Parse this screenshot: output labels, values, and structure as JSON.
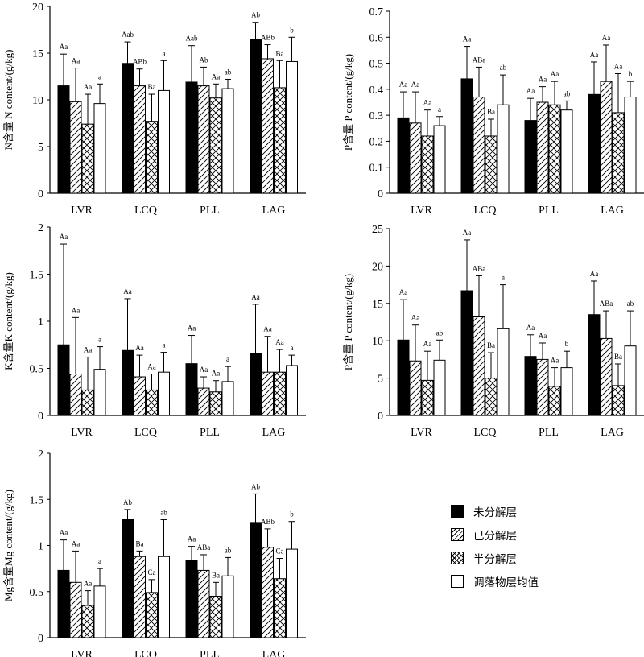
{
  "legend": [
    {
      "label": "未分解层",
      "pattern": "solid"
    },
    {
      "label": "已分解层",
      "pattern": "hatch"
    },
    {
      "label": "半分解层",
      "pattern": "cross"
    },
    {
      "label": "调落物层均值",
      "pattern": "white"
    }
  ],
  "colors": {
    "bar_fill": "#000000",
    "hatch_line": "#000000",
    "background": "#ffffff"
  },
  "chart_data": [
    {
      "type": "bar",
      "ylabel": "N含量 N content/(g/kg)",
      "ylim": [
        0,
        20
      ],
      "yticks": [
        0,
        5,
        10,
        15,
        20
      ],
      "categories": [
        "LVR",
        "LCQ",
        "PLL",
        "LAG"
      ],
      "series": [
        {
          "name": "未分解层",
          "values": [
            11.5,
            13.9,
            11.9,
            16.5
          ],
          "errors": [
            3.4,
            2.3,
            3.9,
            1.8
          ],
          "labels": [
            "Aa",
            "Aab",
            "Aab",
            "Ab"
          ]
        },
        {
          "name": "已分解层",
          "values": [
            9.8,
            11.5,
            11.5,
            14.4
          ],
          "errors": [
            3.6,
            1.8,
            2.0,
            1.5
          ],
          "labels": [
            "Aa",
            "ABb",
            "Ab",
            "ABb"
          ]
        },
        {
          "name": "半分解层",
          "values": [
            7.4,
            7.7,
            10.2,
            11.3
          ],
          "errors": [
            3.2,
            2.9,
            1.5,
            2.9
          ],
          "labels": [
            "Aa",
            "Ba",
            "Aa",
            "Ba"
          ]
        },
        {
          "name": "调落物层均值",
          "values": [
            9.6,
            11.0,
            11.2,
            14.1
          ],
          "errors": [
            2.1,
            3.2,
            1.0,
            2.6
          ],
          "labels": [
            "a",
            "a",
            "ab",
            "b"
          ]
        }
      ]
    },
    {
      "type": "bar",
      "ylabel": "P含量 P content/(g/kg)",
      "ylim": [
        0,
        0.7
      ],
      "yticks": [
        0,
        0.1,
        0.2,
        0.3,
        0.4,
        0.5,
        0.6,
        0.7
      ],
      "categories": [
        "LVR",
        "LCQ",
        "PLL",
        "LAG"
      ],
      "series": [
        {
          "name": "未分解层",
          "values": [
            0.29,
            0.44,
            0.28,
            0.38
          ],
          "errors": [
            0.1,
            0.125,
            0.085,
            0.125
          ],
          "labels": [
            "Aa",
            "Aa",
            "Aa",
            "Aa"
          ]
        },
        {
          "name": "已分解层",
          "values": [
            0.27,
            0.37,
            0.35,
            0.43
          ],
          "errors": [
            0.12,
            0.115,
            0.06,
            0.14
          ],
          "labels": [
            "Aa",
            "ABa",
            "Aa",
            "Aa"
          ]
        },
        {
          "name": "半分解层",
          "values": [
            0.22,
            0.22,
            0.34,
            0.31
          ],
          "errors": [
            0.1,
            0.065,
            0.09,
            0.15
          ],
          "labels": [
            "Aa",
            "Ba",
            "Aa",
            "Aa"
          ]
        },
        {
          "name": "调落物层均值",
          "values": [
            0.26,
            0.34,
            0.32,
            0.37
          ],
          "errors": [
            0.035,
            0.115,
            0.035,
            0.06
          ],
          "labels": [
            "a",
            "ab",
            "ab",
            "b"
          ]
        }
      ]
    },
    {
      "type": "bar",
      "ylabel": "K含量K content/(g/kg)",
      "ylim": [
        0,
        2.0
      ],
      "yticks": [
        0,
        0.5,
        1.0,
        1.5,
        2.0
      ],
      "categories": [
        "LVR",
        "LCQ",
        "PLL",
        "LAG"
      ],
      "series": [
        {
          "name": "未分解层",
          "values": [
            0.75,
            0.69,
            0.55,
            0.66
          ],
          "errors": [
            1.07,
            0.55,
            0.3,
            0.52
          ],
          "labels": [
            "Aa",
            "Aa",
            "Aa",
            "Aa"
          ]
        },
        {
          "name": "已分解层",
          "values": [
            0.44,
            0.41,
            0.29,
            0.46
          ],
          "errors": [
            0.6,
            0.23,
            0.12,
            0.38
          ],
          "labels": [
            "Aa",
            "Aa",
            "Aa",
            "Aa"
          ]
        },
        {
          "name": "半分解层",
          "values": [
            0.27,
            0.27,
            0.25,
            0.46
          ],
          "errors": [
            0.35,
            0.17,
            0.12,
            0.24
          ],
          "labels": [
            "Aa",
            "Aa",
            "Aa",
            "Aa"
          ]
        },
        {
          "name": "调落物层均值",
          "values": [
            0.49,
            0.46,
            0.36,
            0.53
          ],
          "errors": [
            0.24,
            0.21,
            0.16,
            0.11
          ],
          "labels": [
            "a",
            "a",
            "a",
            "a"
          ]
        }
      ]
    },
    {
      "type": "bar",
      "ylabel": "P含量 P content/(g/kg)",
      "ylim": [
        0,
        25
      ],
      "yticks": [
        0,
        5,
        10,
        15,
        20,
        25
      ],
      "categories": [
        "LVR",
        "LCQ",
        "PLL",
        "LAG"
      ],
      "series": [
        {
          "name": "未分解层",
          "values": [
            10.1,
            16.7,
            7.9,
            13.5
          ],
          "errors": [
            5.4,
            6.8,
            2.9,
            4.5
          ],
          "labels": [
            "Aa",
            "Aa",
            "Aa",
            "Aa"
          ]
        },
        {
          "name": "已分解层",
          "values": [
            7.3,
            13.2,
            7.5,
            10.3
          ],
          "errors": [
            4.8,
            5.5,
            2.2,
            3.7
          ],
          "labels": [
            "Aa",
            "ABa",
            "Aa",
            "ABa"
          ]
        },
        {
          "name": "半分解层",
          "values": [
            4.7,
            5.0,
            3.9,
            4.0
          ],
          "errors": [
            3.9,
            3.4,
            2.5,
            2.9
          ],
          "labels": [
            "Aa",
            "Ba",
            "Aa",
            "Ba"
          ]
        },
        {
          "name": "调落物层均值",
          "values": [
            7.4,
            11.6,
            6.4,
            9.3
          ],
          "errors": [
            2.7,
            5.9,
            2.2,
            4.7
          ],
          "labels": [
            "ab",
            "a",
            "b",
            "ab"
          ]
        }
      ]
    },
    {
      "type": "bar",
      "ylabel": "Mg含量Mg content/(g/kg)",
      "ylim": [
        0,
        2.0
      ],
      "yticks": [
        0,
        0.5,
        1.0,
        1.5,
        2.0
      ],
      "categories": [
        "LVR",
        "LCQ",
        "PLL",
        "LAG"
      ],
      "series": [
        {
          "name": "未分解层",
          "values": [
            0.73,
            1.28,
            0.84,
            1.25
          ],
          "errors": [
            0.33,
            0.11,
            0.15,
            0.31
          ],
          "labels": [
            "Aa",
            "Ab",
            "Aa",
            "Ab"
          ]
        },
        {
          "name": "已分解层",
          "values": [
            0.6,
            0.88,
            0.73,
            0.98
          ],
          "errors": [
            0.34,
            0.06,
            0.17,
            0.2
          ],
          "labels": [
            "Aa",
            "Ba",
            "ABa",
            "ABb"
          ]
        },
        {
          "name": "半分解层",
          "values": [
            0.35,
            0.49,
            0.45,
            0.64
          ],
          "errors": [
            0.16,
            0.14,
            0.15,
            0.22
          ],
          "labels": [
            "Aa",
            "Ca",
            "Ba",
            "Ca"
          ]
        },
        {
          "name": "调落物层均值",
          "values": [
            0.56,
            0.88,
            0.67,
            0.96
          ],
          "errors": [
            0.19,
            0.4,
            0.2,
            0.3
          ],
          "labels": [
            "a",
            "ab",
            "ab",
            "b"
          ]
        }
      ]
    }
  ]
}
